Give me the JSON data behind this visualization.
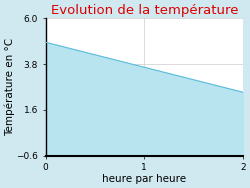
{
  "title": "Evolution de la température",
  "xlabel": "heure par heure",
  "ylabel": "Température en °C",
  "x_data": [
    0,
    2
  ],
  "y_data": [
    4.85,
    2.45
  ],
  "ylim": [
    -0.6,
    6.0
  ],
  "xlim": [
    0,
    2
  ],
  "yticks": [
    -0.6,
    1.6,
    3.8,
    6.0
  ],
  "xticks": [
    0,
    1,
    2
  ],
  "fill_color": "#b8e4f0",
  "line_color": "#5bbcda",
  "title_color": "#dd0000",
  "background_color": "#d0e8f0",
  "plot_bg_color": "#ffffff",
  "grid_color": "#cccccc",
  "title_fontsize": 9.5,
  "label_fontsize": 7.5,
  "tick_fontsize": 6.5
}
